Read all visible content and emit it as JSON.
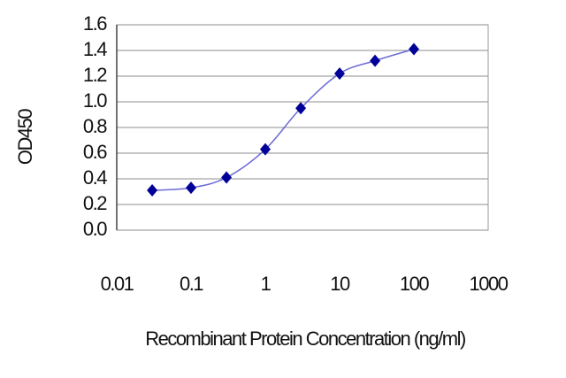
{
  "chart_data": {
    "type": "line",
    "x_label": "Recombinant Protein Concentration (ng/ml)",
    "y_label": "OD450",
    "x": [
      0.03,
      0.1,
      0.3,
      1,
      3,
      10,
      30,
      100
    ],
    "series": [
      {
        "name": "OD450",
        "color": "#000099",
        "line_color": "#6b6bd6",
        "values": [
          0.31,
          0.33,
          0.41,
          0.63,
          0.95,
          1.22,
          1.32,
          1.41
        ]
      }
    ],
    "xlim": [
      0.01,
      1000
    ],
    "xticks": [
      0.01,
      0.1,
      1,
      10,
      100,
      1000
    ],
    "x_log": true,
    "ylim": [
      0,
      1.6
    ],
    "yticks": [
      {
        "value": 0,
        "label": "0.0"
      },
      0.2,
      0.4,
      0.6,
      0.8,
      {
        "value": 1,
        "label": "1.0"
      },
      1.2,
      1.4,
      1.6
    ],
    "grid": true
  }
}
